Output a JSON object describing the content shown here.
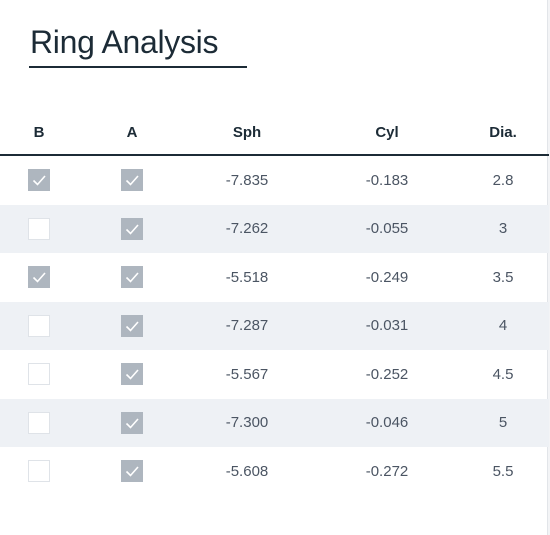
{
  "title": "Ring Analysis",
  "columns": {
    "b": "B",
    "a": "A",
    "sph": "Sph",
    "cyl": "Cyl",
    "dia": "Dia."
  },
  "rows": [
    {
      "b": true,
      "a": true,
      "sph": "-7.835",
      "cyl": "-0.183",
      "dia": "2.8"
    },
    {
      "b": false,
      "a": true,
      "sph": "-7.262",
      "cyl": "-0.055",
      "dia": "3"
    },
    {
      "b": true,
      "a": true,
      "sph": "-5.518",
      "cyl": "-0.249",
      "dia": "3.5"
    },
    {
      "b": false,
      "a": true,
      "sph": "-7.287",
      "cyl": "-0.031",
      "dia": "4"
    },
    {
      "b": false,
      "a": true,
      "sph": "-5.567",
      "cyl": "-0.252",
      "dia": "4.5"
    },
    {
      "b": false,
      "a": true,
      "sph": "-7.300",
      "cyl": "-0.046",
      "dia": "5"
    },
    {
      "b": false,
      "a": true,
      "sph": "-5.608",
      "cyl": "-0.272",
      "dia": "5.5"
    }
  ],
  "icons": {
    "checkbox_checked": "check-icon"
  },
  "colors": {
    "title": "#1c2b36",
    "checked_fill": "#aeb6bf",
    "alt_row": "#eef1f5"
  }
}
